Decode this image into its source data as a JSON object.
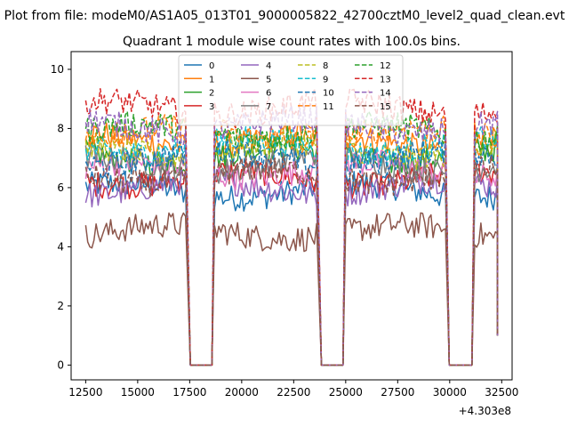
{
  "figure": {
    "suptitle": "Plot from file: modeM0/AS1A05_013T01_9000005822_42700cztM0_level2_quad_clean.evt"
  },
  "chart_data": {
    "type": "line",
    "title": "Quadrant 1 module wise count rates with 100.0s bins.",
    "xlabel": "",
    "ylabel": "",
    "xlim": [
      11800,
      33000
    ],
    "ylim": [
      -0.5,
      10.6
    ],
    "x_offset_label": "+4.303e8",
    "x_ticks": [
      12500,
      15000,
      17500,
      20000,
      22500,
      25000,
      27500,
      30000,
      32500
    ],
    "x_tick_labels": [
      "12500",
      "15000",
      "17500",
      "20000",
      "22500",
      "25000",
      "27500",
      "30000",
      "32500"
    ],
    "y_ticks": [
      0,
      2,
      4,
      6,
      8,
      10
    ],
    "y_tick_labels": [
      "0",
      "2",
      "4",
      "6",
      "8",
      "10"
    ],
    "segments": [
      [
        12500,
        17350
      ],
      [
        18700,
        23650
      ],
      [
        25000,
        29800
      ],
      [
        31200,
        32300
      ]
    ],
    "gap_value": 0,
    "series": [
      {
        "name": "0",
        "color": "#1f77b4",
        "dash": "solid",
        "level": 5.9
      },
      {
        "name": "1",
        "color": "#ff7f0e",
        "dash": "solid",
        "level": 7.6
      },
      {
        "name": "2",
        "color": "#2ca02c",
        "dash": "solid",
        "level": 7.1
      },
      {
        "name": "3",
        "color": "#d62728",
        "dash": "solid",
        "level": 6.3
      },
      {
        "name": "4",
        "color": "#9467bd",
        "dash": "solid",
        "level": 6.0
      },
      {
        "name": "5",
        "color": "#8c564b",
        "dash": "solid",
        "level": 4.5
      },
      {
        "name": "6",
        "color": "#e377c2",
        "dash": "solid",
        "level": 6.6
      },
      {
        "name": "7",
        "color": "#7f7f7f",
        "dash": "solid",
        "level": 6.8
      },
      {
        "name": "8",
        "color": "#bcbd22",
        "dash": "dashed",
        "level": 7.3
      },
      {
        "name": "9",
        "color": "#17becf",
        "dash": "dashed",
        "level": 7.4
      },
      {
        "name": "10",
        "color": "#1f77b4",
        "dash": "dashed",
        "level": 7.0
      },
      {
        "name": "11",
        "color": "#ff7f0e",
        "dash": "dashed",
        "level": 7.8
      },
      {
        "name": "12",
        "color": "#2ca02c",
        "dash": "dashed",
        "level": 7.9
      },
      {
        "name": "13",
        "color": "#d62728",
        "dash": "dashed",
        "level": 8.7
      },
      {
        "name": "14",
        "color": "#9467bd",
        "dash": "dashed",
        "level": 8.1
      },
      {
        "name": "15",
        "color": "#8c564b",
        "dash": "dashed",
        "level": 6.4
      }
    ],
    "legend": {
      "location": "upper-center",
      "columns": 4
    }
  }
}
